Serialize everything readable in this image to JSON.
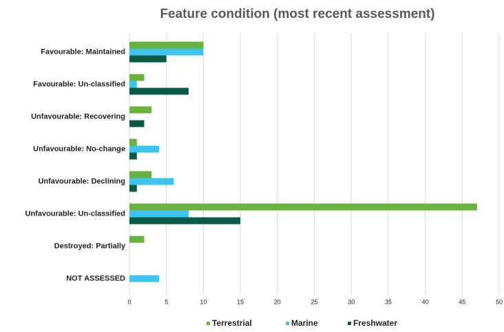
{
  "chart_data": {
    "type": "hbar",
    "title": "Feature condition (most recent assessment)",
    "categories": [
      "Favourable: Maintained",
      "Favourable: Un-classified",
      "Unfavourable: Recovering",
      "Unfavourable: No-change",
      "Unfavourable: Declining",
      "Unfavourable: Un-classified",
      "Destroyed: Partially",
      "NOT ASSESSED"
    ],
    "series": [
      {
        "name": "Terrestrial",
        "color": "#6ab23e",
        "values": [
          10,
          2,
          3,
          1,
          3,
          47,
          2,
          0
        ]
      },
      {
        "name": "Marine",
        "color": "#3ec4ee",
        "values": [
          10,
          1,
          0,
          4,
          6,
          8,
          0,
          4
        ]
      },
      {
        "name": "Freshwater",
        "color": "#0e5a48",
        "values": [
          5,
          8,
          2,
          1,
          1,
          15,
          0,
          0
        ]
      }
    ],
    "xlim": [
      0,
      50
    ],
    "xticks": [
      0,
      5,
      10,
      15,
      20,
      25,
      30,
      35,
      40,
      45,
      50
    ],
    "grid": true,
    "legend": "bottom"
  }
}
